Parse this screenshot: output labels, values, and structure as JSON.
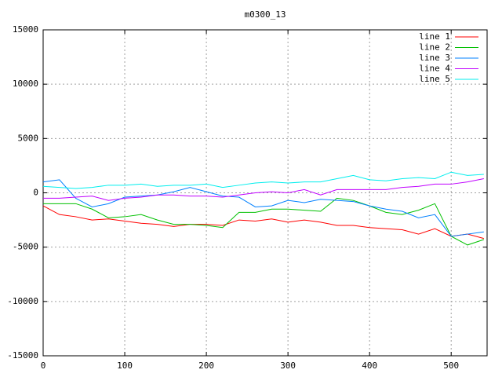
{
  "chart_data": {
    "type": "line",
    "title": "m0300_13",
    "x": [
      0,
      20,
      40,
      60,
      80,
      100,
      120,
      140,
      160,
      180,
      200,
      220,
      240,
      260,
      280,
      300,
      320,
      340,
      360,
      380,
      400,
      420,
      440,
      460,
      480,
      500,
      520,
      540
    ],
    "xlim": [
      0,
      544
    ],
    "xticks": [
      0,
      100,
      200,
      300,
      400,
      500
    ],
    "ylim": [
      -15000,
      15000
    ],
    "yticks": [
      -15000,
      -10000,
      -5000,
      0,
      5000,
      10000,
      15000
    ],
    "grid": true,
    "legend": "top-right",
    "series": [
      {
        "name": "line 1",
        "color": "#ff0000",
        "values": [
          -1200,
          -2000,
          -2200,
          -2500,
          -2400,
          -2600,
          -2800,
          -2900,
          -3100,
          -2900,
          -2900,
          -3000,
          -2500,
          -2600,
          -2400,
          -2700,
          -2500,
          -2700,
          -3000,
          -3000,
          -3200,
          -3300,
          -3400,
          -3800,
          -3300,
          -4000,
          -3800,
          -4200
        ]
      },
      {
        "name": "line 2",
        "color": "#00c000",
        "values": [
          -1000,
          -1000,
          -1000,
          -1500,
          -2300,
          -2200,
          -2000,
          -2500,
          -2900,
          -2900,
          -3000,
          -3200,
          -1800,
          -1800,
          -1500,
          -1500,
          -1600,
          -1700,
          -500,
          -700,
          -1200,
          -1800,
          -2000,
          -1600,
          -1000,
          -4000,
          -4800,
          -4300
        ]
      },
      {
        "name": "line 3",
        "color": "#0080ff",
        "values": [
          1000,
          1200,
          -500,
          -1300,
          -1000,
          -400,
          -300,
          -200,
          100,
          500,
          100,
          -300,
          -400,
          -1300,
          -1200,
          -700,
          -900,
          -600,
          -700,
          -800,
          -1200,
          -1500,
          -1700,
          -2300,
          -2000,
          -4000,
          -3800,
          -3600
        ]
      },
      {
        "name": "line 4",
        "color": "#c000ff",
        "values": [
          -500,
          -500,
          -400,
          -300,
          -700,
          -500,
          -400,
          -200,
          -200,
          -300,
          -300,
          -400,
          -200,
          0,
          100,
          0,
          300,
          -200,
          300,
          300,
          300,
          300,
          500,
          600,
          800,
          800,
          1000,
          1300
        ]
      },
      {
        "name": "line 5",
        "color": "#00eeee",
        "values": [
          600,
          500,
          400,
          500,
          700,
          700,
          800,
          600,
          700,
          700,
          800,
          500,
          700,
          900,
          1000,
          900,
          1000,
          1000,
          1300,
          1600,
          1200,
          1100,
          1300,
          1400,
          1300,
          1900,
          1600,
          1700
        ]
      }
    ]
  }
}
